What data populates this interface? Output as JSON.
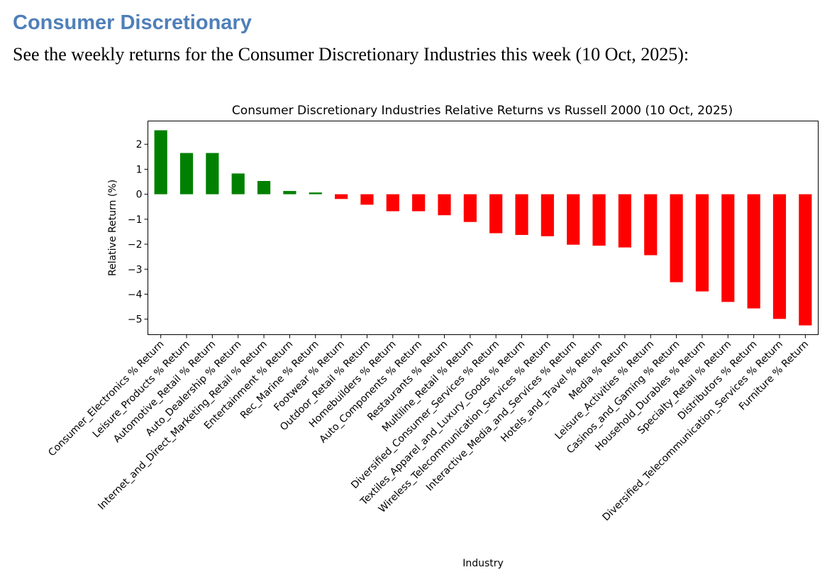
{
  "page": {
    "heading": "Consumer Discretionary",
    "subtitle": "See the weekly returns for the Consumer Discretionary Industries this week (10 Oct, 2025):"
  },
  "chart_data": {
    "type": "bar",
    "title": "Consumer Discretionary Industries Relative Returns vs Russell 2000 (10 Oct, 2025)",
    "xlabel": "Industry",
    "ylabel": "Relative Return (%)",
    "ylim": [
      -5.62,
      2.93
    ],
    "yticks": [
      2,
      1,
      0,
      -1,
      -2,
      -3,
      -4,
      -5
    ],
    "grid": false,
    "positive_color": "#008000",
    "negative_color": "#ff0000",
    "categories": [
      "Consumer_Electronics % Return",
      "Leisure_Products % Return",
      "Automotive_Retail % Return",
      "Auto_Dealership % Return",
      "Internet_and_Direct_Marketing_Retail % Return",
      "Entertainment % Return",
      "Rec_Marine % Return",
      "Footwear % Return",
      "Outdoor_Retail % Return",
      "Homebuilders % Return",
      "Auto_Components % Return",
      "Restaurants % Return",
      "Multiline_Retail % Return",
      "Diversified_Consumer_Services % Return",
      "Textiles_Apparel_and_Luxury_Goods % Return",
      "Wireless_Telecommunication_Services % Return",
      "Interactive_Media_and_Services % Return",
      "Hotels_and_Travel % Return",
      "Media % Return",
      "Leisure_Activities % Return",
      "Casinos_and_Gaming % Return",
      "Household_Durables % Return",
      "Specialty_Retail % Return",
      "Distributors % Return",
      "Diversified_Telecommunication_Services % Return",
      "Furniture % Return"
    ],
    "values": [
      2.56,
      1.65,
      1.65,
      0.83,
      0.53,
      0.13,
      0.07,
      -0.19,
      -0.42,
      -0.68,
      -0.68,
      -0.84,
      -1.11,
      -1.56,
      -1.63,
      -1.68,
      -2.02,
      -2.06,
      -2.13,
      -2.44,
      -3.52,
      -3.89,
      -4.31,
      -4.57,
      -4.99,
      -5.25
    ]
  }
}
